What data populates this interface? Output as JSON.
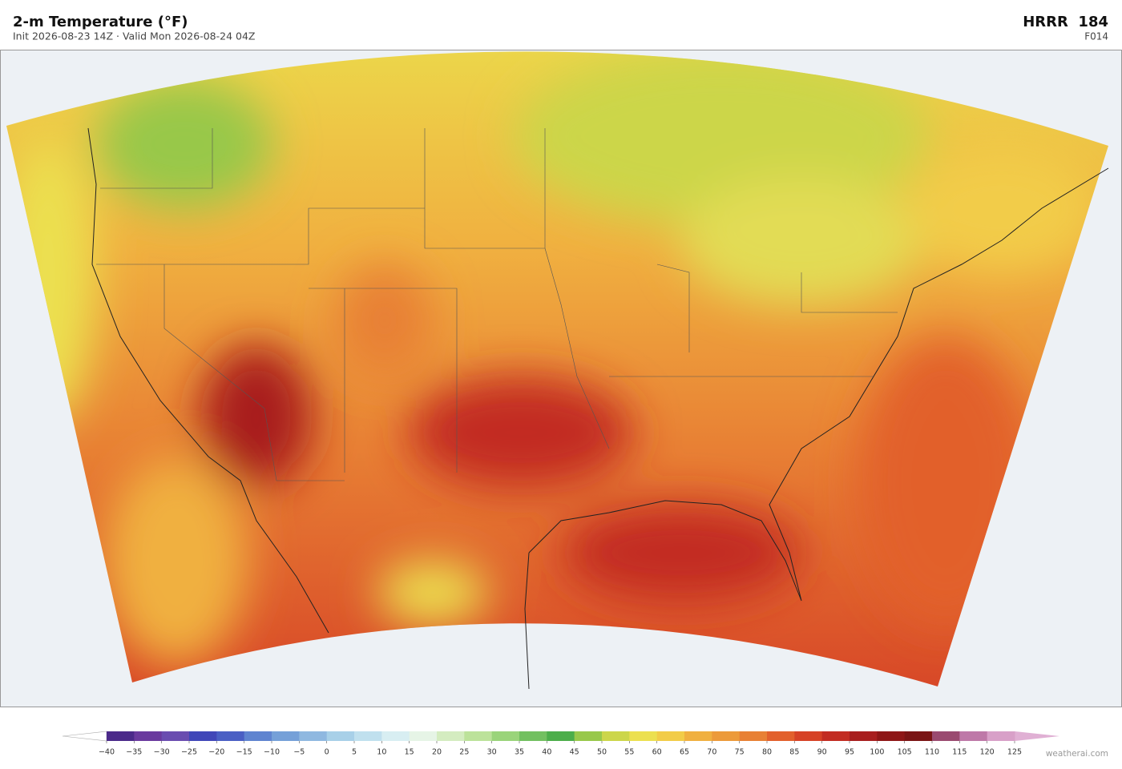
{
  "header": {
    "title": "2-m Temperature  (°F)",
    "subtitle": "Init 2026-08-23 14Z  ·  Valid Mon 2026-08-24 04Z",
    "model": "HRRR  184",
    "forecast_hour": "F014"
  },
  "colorbar": {
    "ticks": [
      {
        "value": -40,
        "label": "−40"
      },
      {
        "value": -35,
        "label": "−35"
      },
      {
        "value": -30,
        "label": "−30"
      },
      {
        "value": -25,
        "label": "−25"
      },
      {
        "value": -20,
        "label": "−20"
      },
      {
        "value": -15,
        "label": "−15"
      },
      {
        "value": -10,
        "label": "−10"
      },
      {
        "value": -5,
        "label": "−5"
      },
      0,
      5,
      10,
      15,
      20,
      25,
      30,
      35,
      40,
      45,
      50,
      55,
      60,
      65,
      70,
      75,
      80,
      85,
      90,
      95,
      100,
      105,
      110,
      115,
      120,
      125
    ],
    "colors": [
      "#4b2a8a",
      "#6a3a9e",
      "#6a4db0",
      "#4046b8",
      "#4a5fc4",
      "#5f84d0",
      "#75a0d8",
      "#8fb8e0",
      "#a8d0e8",
      "#c0e0ee",
      "#d8eef2",
      "#e6f4e6",
      "#d4ecc0",
      "#bce29a",
      "#9ad47a",
      "#72c060",
      "#4cae4a",
      "#98c84a",
      "#ccd64a",
      "#ece050",
      "#f2cc48",
      "#f0b040",
      "#ec9a3a",
      "#e88034",
      "#e2602c",
      "#d64226",
      "#c22c22",
      "#a81e1e",
      "#8e1616",
      "#7a1414",
      "#9a4a70",
      "#be78a8",
      "#d8a0c8"
    ],
    "under_color": "#ffffff",
    "over_color": "#e0b0d4"
  },
  "footer": {
    "credit": "weatherai.com"
  }
}
